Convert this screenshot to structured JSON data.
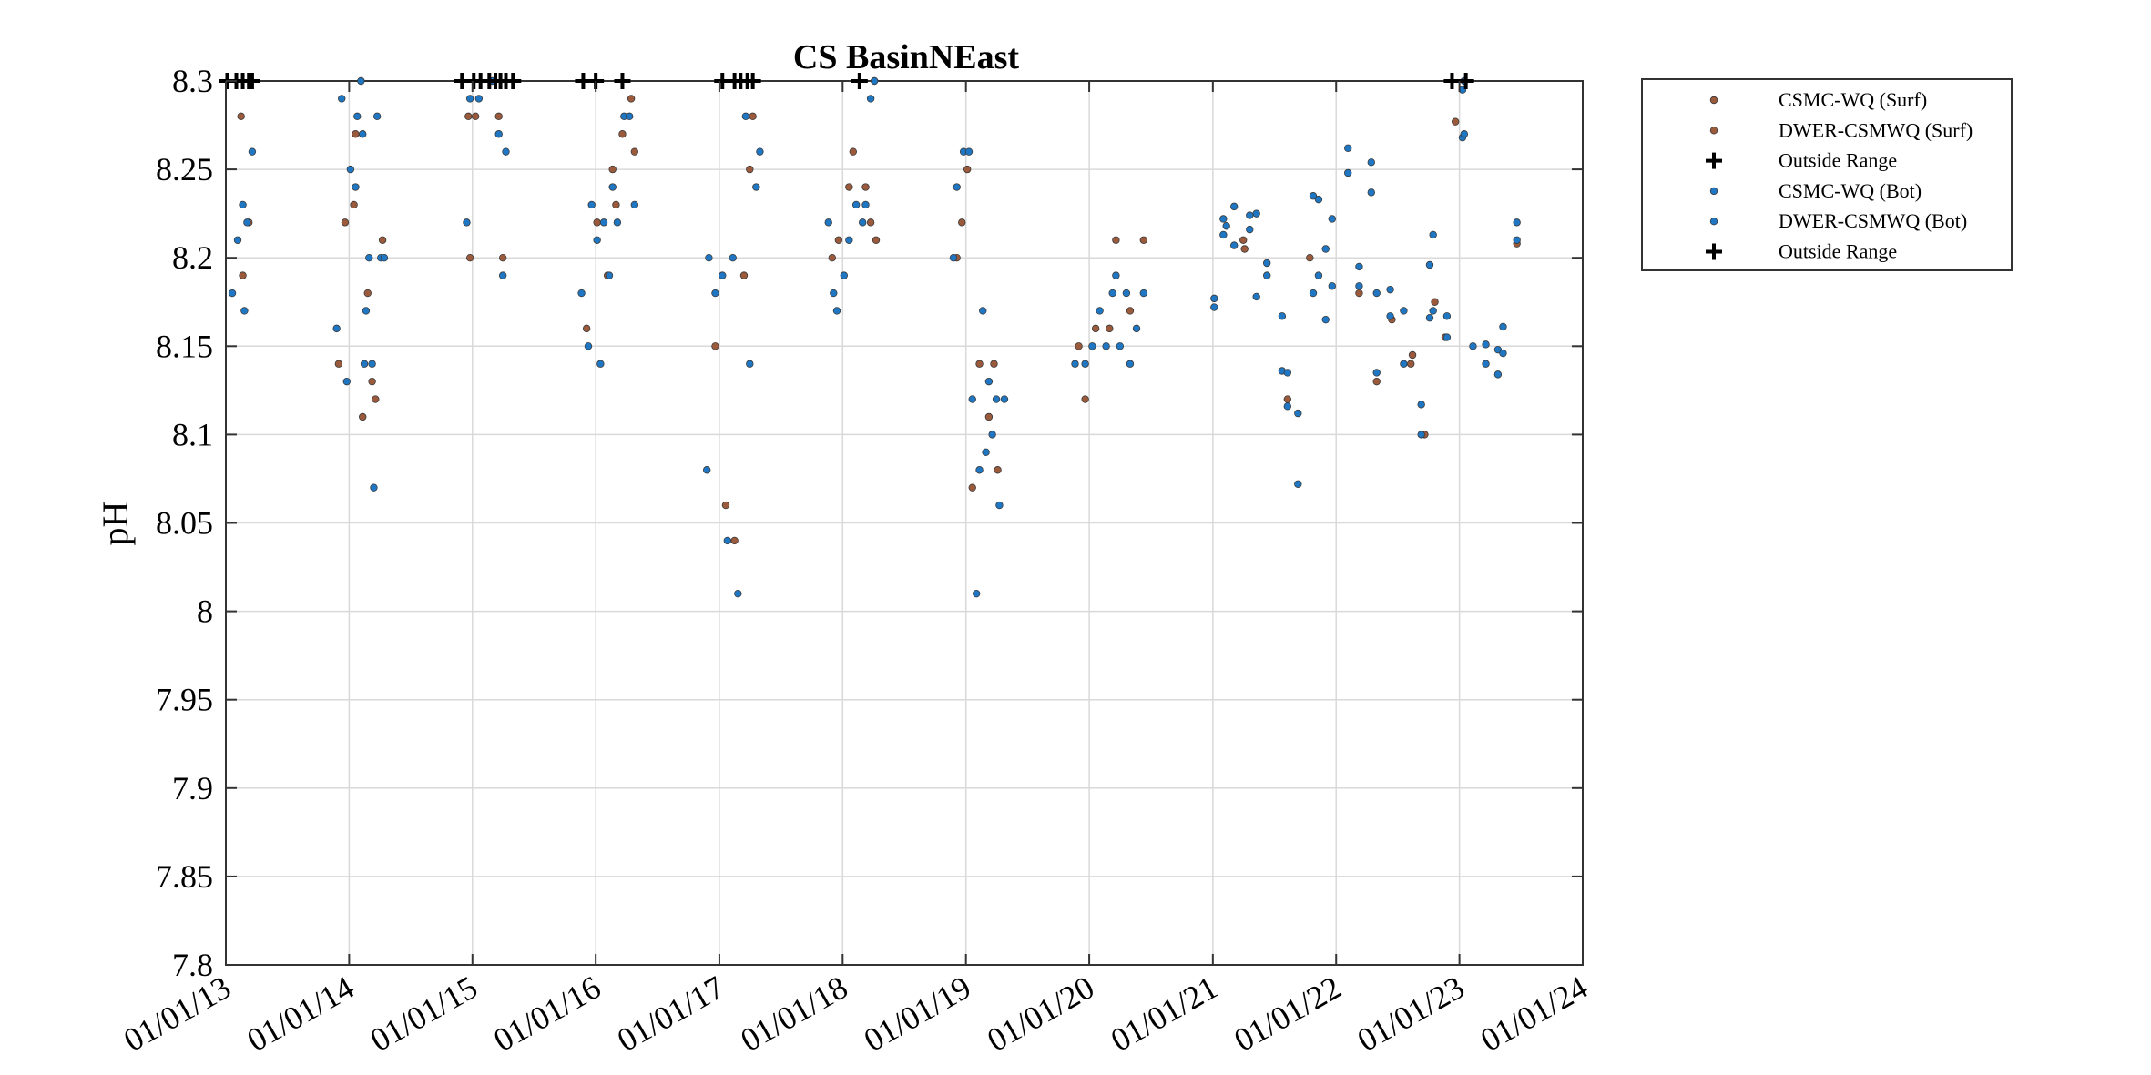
{
  "chart_data": {
    "type": "scatter",
    "title": "CS BasinNEast",
    "xlabel": "",
    "ylabel": "pH",
    "ylim": [
      7.8,
      8.3
    ],
    "xlim": [
      "2013-01-01",
      "2024-01-01"
    ],
    "y_ticks": [
      "7.8",
      "7.85",
      "7.9",
      "7.95",
      "8",
      "8.05",
      "8.1",
      "8.15",
      "8.2",
      "8.25",
      "8.3"
    ],
    "x_ticks": [
      {
        "date": "2013-01-01",
        "label": "01/01/13"
      },
      {
        "date": "2014-01-01",
        "label": "01/01/14"
      },
      {
        "date": "2015-01-01",
        "label": "01/01/15"
      },
      {
        "date": "2016-01-01",
        "label": "01/01/16"
      },
      {
        "date": "2017-01-01",
        "label": "01/01/17"
      },
      {
        "date": "2018-01-01",
        "label": "01/01/18"
      },
      {
        "date": "2019-01-01",
        "label": "01/01/19"
      },
      {
        "date": "2020-01-01",
        "label": "01/01/20"
      },
      {
        "date": "2021-01-01",
        "label": "01/01/21"
      },
      {
        "date": "2022-01-01",
        "label": "01/01/22"
      },
      {
        "date": "2023-01-01",
        "label": "01/01/23"
      },
      {
        "date": "2024-01-01",
        "label": "01/01/24"
      }
    ],
    "grid": true,
    "legend_position": "outside-top-right",
    "colors": {
      "surf": "#9b5a3c",
      "bot": "#1f77c4",
      "outside": "#000000",
      "grid": "#d9d9d9",
      "axis": "#333333"
    },
    "legend": [
      {
        "label": "CSMC-WQ (Surf)",
        "marker": "dot",
        "color": "#9b5a3c"
      },
      {
        "label": "DWER-CSMWQ (Surf)",
        "marker": "dot",
        "color": "#9b5a3c"
      },
      {
        "label": "Outside Range",
        "marker": "plus",
        "color": "#000000"
      },
      {
        "label": "CSMC-WQ (Bot)",
        "marker": "dot",
        "color": "#1f77c4"
      },
      {
        "label": "DWER-CSMWQ (Bot)",
        "marker": "dot",
        "color": "#1f77c4"
      },
      {
        "label": "Outside Range",
        "marker": "plus",
        "color": "#000000"
      }
    ],
    "series": [
      {
        "name": "CSMC-WQ (Surf)",
        "marker": "dot",
        "color": "#9b5a3c",
        "points": [
          [
            "2013-02-15",
            8.28
          ],
          [
            "2013-02-20",
            8.19
          ],
          [
            "2013-03-10",
            8.22
          ],
          [
            "2013-12-01",
            8.14
          ],
          [
            "2013-12-20",
            8.22
          ],
          [
            "2014-01-20",
            8.27
          ],
          [
            "2014-02-10",
            8.11
          ],
          [
            "2014-02-25",
            8.18
          ],
          [
            "2014-03-10",
            8.13
          ],
          [
            "2014-03-20",
            8.12
          ],
          [
            "2014-04-10",
            8.21
          ],
          [
            "2014-01-15",
            8.23
          ],
          [
            "2014-12-20",
            8.28
          ],
          [
            "2014-12-25",
            8.2
          ],
          [
            "2015-01-10",
            8.28
          ],
          [
            "2015-03-20",
            8.28
          ],
          [
            "2015-04-01",
            8.2
          ],
          [
            "2015-12-05",
            8.16
          ],
          [
            "2016-01-05",
            8.22
          ],
          [
            "2016-02-05",
            8.19
          ],
          [
            "2016-02-20",
            8.25
          ],
          [
            "2016-03-01",
            8.23
          ],
          [
            "2016-03-20",
            8.27
          ],
          [
            "2016-04-15",
            8.29
          ],
          [
            "2016-04-25",
            8.26
          ],
          [
            "2016-12-20",
            8.15
          ],
          [
            "2017-01-20",
            8.06
          ],
          [
            "2017-02-15",
            8.04
          ],
          [
            "2017-03-15",
            8.19
          ],
          [
            "2017-04-01",
            8.25
          ],
          [
            "2017-04-10",
            8.28
          ],
          [
            "2017-12-01",
            8.2
          ],
          [
            "2017-12-20",
            8.21
          ],
          [
            "2018-01-20",
            8.24
          ],
          [
            "2018-02-01",
            8.26
          ],
          [
            "2018-03-10",
            8.24
          ],
          [
            "2018-03-25",
            8.22
          ],
          [
            "2018-04-10",
            8.21
          ],
          [
            "2018-12-05",
            8.2
          ],
          [
            "2018-12-20",
            8.22
          ],
          [
            "2019-01-05",
            8.25
          ],
          [
            "2019-01-20",
            8.07
          ],
          [
            "2019-02-10",
            8.14
          ],
          [
            "2019-03-10",
            8.11
          ],
          [
            "2019-03-25",
            8.14
          ],
          [
            "2019-04-05",
            8.08
          ],
          [
            "2019-12-01",
            8.15
          ],
          [
            "2019-12-20",
            8.12
          ],
          [
            "2020-01-20",
            8.16
          ],
          [
            "2020-03-01",
            8.16
          ],
          [
            "2020-03-20",
            8.21
          ],
          [
            "2020-05-01",
            8.17
          ],
          [
            "2020-06-10",
            8.21
          ],
          [
            "2021-04-01",
            8.21
          ],
          [
            "2021-04-05",
            8.205
          ],
          [
            "2021-08-10",
            8.12
          ],
          [
            "2021-10-15",
            8.2
          ],
          [
            "2022-03-10",
            8.18
          ],
          [
            "2022-05-01",
            8.13
          ],
          [
            "2022-06-15",
            8.165
          ],
          [
            "2022-08-10",
            8.14
          ],
          [
            "2022-08-15",
            8.145
          ],
          [
            "2022-09-20",
            8.1
          ],
          [
            "2022-10-20",
            8.175
          ],
          [
            "2022-11-20",
            8.155
          ],
          [
            "2022-12-20",
            8.277
          ],
          [
            "2023-06-20",
            8.208
          ]
        ]
      },
      {
        "name": "CSMC-WQ (Bot)",
        "marker": "dot",
        "color": "#1f77c4",
        "points": [
          [
            "2013-01-20",
            8.18
          ],
          [
            "2013-02-05",
            8.21
          ],
          [
            "2013-02-20",
            8.23
          ],
          [
            "2013-02-25",
            8.17
          ],
          [
            "2013-03-05",
            8.22
          ],
          [
            "2013-03-20",
            8.26
          ],
          [
            "2013-11-25",
            8.16
          ],
          [
            "2013-12-10",
            8.29
          ],
          [
            "2013-12-25",
            8.13
          ],
          [
            "2014-01-05",
            8.25
          ],
          [
            "2014-01-20",
            8.24
          ],
          [
            "2014-02-05",
            8.3
          ],
          [
            "2014-02-10",
            8.27
          ],
          [
            "2014-02-15",
            8.14
          ],
          [
            "2014-02-20",
            8.17
          ],
          [
            "2014-03-01",
            8.2
          ],
          [
            "2014-03-10",
            8.14
          ],
          [
            "2014-03-15",
            8.07
          ],
          [
            "2014-03-25",
            8.28
          ],
          [
            "2014-04-05",
            8.2
          ],
          [
            "2014-04-15",
            8.2
          ],
          [
            "2014-01-25",
            8.28
          ],
          [
            "2014-12-15",
            8.22
          ],
          [
            "2014-12-25",
            8.29
          ],
          [
            "2015-01-20",
            8.29
          ],
          [
            "2015-03-01",
            8.3
          ],
          [
            "2015-03-20",
            8.27
          ],
          [
            "2015-04-01",
            8.19
          ],
          [
            "2015-04-10",
            8.26
          ],
          [
            "2015-11-20",
            8.18
          ],
          [
            "2015-12-10",
            8.15
          ],
          [
            "2015-12-20",
            8.23
          ],
          [
            "2016-01-05",
            8.21
          ],
          [
            "2016-01-15",
            8.14
          ],
          [
            "2016-01-25",
            8.22
          ],
          [
            "2016-02-10",
            8.19
          ],
          [
            "2016-02-20",
            8.24
          ],
          [
            "2016-03-05",
            8.22
          ],
          [
            "2016-03-25",
            8.28
          ],
          [
            "2016-04-10",
            8.28
          ],
          [
            "2016-04-25",
            8.23
          ],
          [
            "2016-11-25",
            8.08
          ],
          [
            "2016-12-01",
            8.2
          ],
          [
            "2016-12-20",
            8.18
          ],
          [
            "2017-01-10",
            8.19
          ],
          [
            "2017-01-25",
            8.04
          ],
          [
            "2017-02-10",
            8.2
          ],
          [
            "2017-02-25",
            8.01
          ],
          [
            "2017-03-20",
            8.28
          ],
          [
            "2017-04-01",
            8.14
          ],
          [
            "2017-04-20",
            8.24
          ],
          [
            "2017-05-01",
            8.26
          ],
          [
            "2017-11-20",
            8.22
          ],
          [
            "2017-12-05",
            8.18
          ],
          [
            "2017-12-15",
            8.17
          ],
          [
            "2018-01-05",
            8.19
          ],
          [
            "2018-01-20",
            8.21
          ],
          [
            "2018-02-10",
            8.23
          ],
          [
            "2018-03-01",
            8.22
          ],
          [
            "2018-03-10",
            8.23
          ],
          [
            "2018-03-25",
            8.29
          ],
          [
            "2018-04-05",
            8.3
          ],
          [
            "2018-11-25",
            8.2
          ],
          [
            "2018-12-05",
            8.24
          ],
          [
            "2018-12-25",
            8.26
          ],
          [
            "2019-01-10",
            8.26
          ],
          [
            "2019-01-20",
            8.12
          ],
          [
            "2019-02-01",
            8.01
          ],
          [
            "2019-02-10",
            8.08
          ],
          [
            "2019-02-20",
            8.17
          ],
          [
            "2019-03-01",
            8.09
          ],
          [
            "2019-03-10",
            8.13
          ],
          [
            "2019-03-20",
            8.1
          ],
          [
            "2019-04-01",
            8.12
          ],
          [
            "2019-04-10",
            8.06
          ],
          [
            "2019-04-25",
            8.12
          ],
          [
            "2019-11-20",
            8.14
          ],
          [
            "2019-12-20",
            8.14
          ],
          [
            "2020-01-10",
            8.15
          ],
          [
            "2020-02-01",
            8.17
          ],
          [
            "2020-02-20",
            8.15
          ],
          [
            "2020-03-10",
            8.18
          ],
          [
            "2020-03-20",
            8.19
          ],
          [
            "2020-04-01",
            8.15
          ],
          [
            "2020-04-20",
            8.18
          ],
          [
            "2020-05-01",
            8.14
          ],
          [
            "2020-05-20",
            8.16
          ],
          [
            "2020-06-10",
            8.18
          ],
          [
            "2021-01-05",
            8.172
          ],
          [
            "2021-01-05",
            8.177
          ],
          [
            "2021-02-01",
            8.213
          ],
          [
            "2021-02-01",
            8.222
          ],
          [
            "2021-02-10",
            8.218
          ],
          [
            "2021-03-05",
            8.207
          ],
          [
            "2021-03-05",
            8.229
          ],
          [
            "2021-04-20",
            8.216
          ],
          [
            "2021-04-20",
            8.224
          ],
          [
            "2021-05-10",
            8.178
          ],
          [
            "2021-05-10",
            8.225
          ],
          [
            "2021-06-10",
            8.19
          ],
          [
            "2021-06-10",
            8.197
          ],
          [
            "2021-07-25",
            8.136
          ],
          [
            "2021-07-25",
            8.167
          ],
          [
            "2021-08-10",
            8.116
          ],
          [
            "2021-08-10",
            8.135
          ],
          [
            "2021-09-10",
            8.072
          ],
          [
            "2021-09-10",
            8.112
          ],
          [
            "2021-10-25",
            8.18
          ],
          [
            "2021-10-25",
            8.235
          ],
          [
            "2021-11-10",
            8.19
          ],
          [
            "2021-11-10",
            8.233
          ],
          [
            "2021-12-01",
            8.165
          ],
          [
            "2021-12-01",
            8.205
          ],
          [
            "2021-12-20",
            8.184
          ],
          [
            "2021-12-20",
            8.222
          ],
          [
            "2022-02-05",
            8.248
          ],
          [
            "2022-02-05",
            8.262
          ],
          [
            "2022-03-10",
            8.184
          ],
          [
            "2022-03-10",
            8.195
          ],
          [
            "2022-04-15",
            8.237
          ],
          [
            "2022-04-15",
            8.254
          ],
          [
            "2022-05-01",
            8.135
          ],
          [
            "2022-05-01",
            8.18
          ],
          [
            "2022-06-10",
            8.167
          ],
          [
            "2022-06-10",
            8.182
          ],
          [
            "2022-07-20",
            8.14
          ],
          [
            "2022-07-20",
            8.17
          ],
          [
            "2022-09-10",
            8.1
          ],
          [
            "2022-09-10",
            8.117
          ],
          [
            "2022-10-05",
            8.166
          ],
          [
            "2022-10-05",
            8.196
          ],
          [
            "2022-10-15",
            8.17
          ],
          [
            "2022-10-15",
            8.213
          ],
          [
            "2022-11-25",
            8.155
          ],
          [
            "2022-11-25",
            8.167
          ],
          [
            "2023-01-10",
            8.268
          ],
          [
            "2023-01-10",
            8.295
          ],
          [
            "2023-01-15",
            8.27
          ],
          [
            "2023-01-15",
            8.3
          ],
          [
            "2023-02-10",
            8.15
          ],
          [
            "2023-03-20",
            8.14
          ],
          [
            "2023-03-20",
            8.151
          ],
          [
            "2023-04-25",
            8.134
          ],
          [
            "2023-04-25",
            8.148
          ],
          [
            "2023-05-10",
            8.146
          ],
          [
            "2023-05-10",
            8.161
          ],
          [
            "2023-06-20",
            8.21
          ],
          [
            "2023-06-20",
            8.22
          ]
        ]
      },
      {
        "name": "Outside Range",
        "marker": "plus",
        "color": "#000000",
        "points": [
          [
            "2013-01-05",
            8.3
          ],
          [
            "2013-02-01",
            8.3
          ],
          [
            "2013-02-20",
            8.3
          ],
          [
            "2013-03-10",
            8.3
          ],
          [
            "2013-03-20",
            8.3
          ],
          [
            "2014-12-01",
            8.3
          ],
          [
            "2015-01-05",
            8.3
          ],
          [
            "2015-01-25",
            8.3
          ],
          [
            "2015-02-20",
            8.3
          ],
          [
            "2015-03-10",
            8.3
          ],
          [
            "2015-03-25",
            8.3
          ],
          [
            "2015-04-10",
            8.3
          ],
          [
            "2015-05-01",
            8.3
          ],
          [
            "2015-11-25",
            8.3
          ],
          [
            "2016-01-01",
            8.3
          ],
          [
            "2016-03-20",
            8.3
          ],
          [
            "2017-01-10",
            8.3
          ],
          [
            "2017-02-15",
            8.3
          ],
          [
            "2017-03-05",
            8.3
          ],
          [
            "2017-03-25",
            8.3
          ],
          [
            "2017-04-10",
            8.3
          ],
          [
            "2018-02-20",
            8.3
          ],
          [
            "2022-12-10",
            8.3
          ],
          [
            "2023-01-20",
            8.3
          ]
        ]
      }
    ]
  }
}
